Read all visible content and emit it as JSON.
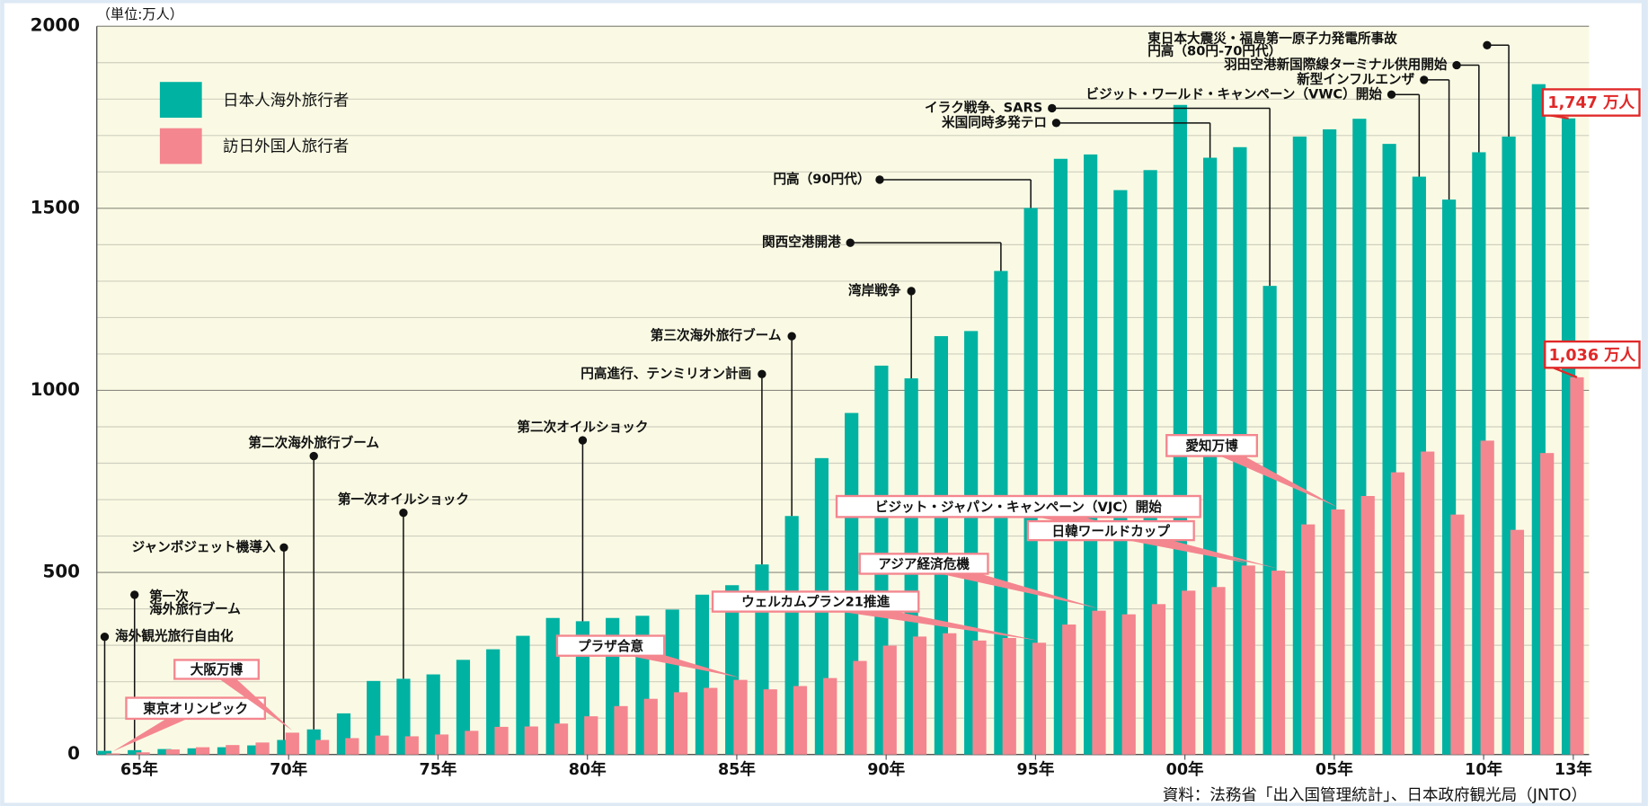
{
  "chart_data": {
    "type": "bar",
    "unit_label": "（単位:万人）",
    "source": "資料：法務省「出入国管理統計」、日本政府観光局（JNTO）",
    "categories": [
      null,
      "65年",
      null,
      null,
      null,
      null,
      "70年",
      null,
      null,
      null,
      null,
      "75年",
      null,
      null,
      null,
      null,
      "80年",
      null,
      null,
      null,
      null,
      "85年",
      null,
      null,
      null,
      null,
      "90年",
      null,
      null,
      null,
      null,
      "95年",
      null,
      null,
      null,
      null,
      "00年",
      null,
      null,
      null,
      null,
      "05年",
      null,
      null,
      null,
      null,
      "10年",
      null,
      null,
      "13年"
    ],
    "series": [
      {
        "name": "日本人海外旅行者",
        "color": "#00b2a2",
        "values": [
          10,
          12,
          15,
          17,
          20,
          25,
          40,
          69,
          113,
          202,
          208,
          220,
          260,
          289,
          326,
          375,
          366,
          375,
          381,
          398,
          439,
          465,
          522,
          655,
          814,
          938,
          1068,
          1033,
          1149,
          1163,
          1328,
          1501,
          1636,
          1648,
          1550,
          1605,
          1784,
          1639,
          1668,
          1287,
          1697,
          1717,
          1746,
          1677,
          1587,
          1524,
          1654,
          1697,
          1841,
          1747
        ],
        "value_labels": [
          null,
          null,
          null,
          null,
          null,
          null,
          null,
          null,
          null,
          null,
          null,
          null,
          null,
          null,
          null,
          null,
          null,
          null,
          null,
          null,
          null,
          null,
          null,
          null,
          null,
          null,
          null,
          null,
          null,
          null,
          null,
          null,
          null,
          null,
          null,
          null,
          null,
          null,
          null,
          null,
          null,
          null,
          null,
          null,
          null,
          null,
          null,
          null,
          null,
          "1,747 万人"
        ]
      },
      {
        "name": "訪日外国人旅行者",
        "color": "#f4868f",
        "values": [
          3,
          6,
          14,
          20,
          26,
          33,
          60,
          40,
          45,
          52,
          50,
          55,
          65,
          76,
          77,
          85,
          105,
          133,
          153,
          171,
          183,
          205,
          179,
          188,
          210,
          257,
          299,
          324,
          333,
          313,
          320,
          307,
          357,
          395,
          385,
          413,
          450,
          460,
          519,
          505,
          632,
          673,
          710,
          775,
          832,
          659,
          862,
          617,
          828,
          1036
        ],
        "value_labels": [
          null,
          null,
          null,
          null,
          null,
          null,
          null,
          null,
          null,
          null,
          null,
          null,
          null,
          null,
          null,
          null,
          null,
          null,
          null,
          null,
          null,
          null,
          null,
          null,
          null,
          null,
          null,
          null,
          null,
          null,
          null,
          null,
          null,
          null,
          null,
          null,
          null,
          null,
          null,
          null,
          null,
          null,
          null,
          null,
          null,
          null,
          null,
          null,
          null,
          "1,036 万人"
        ]
      }
    ],
    "ylim": [
      0,
      2000
    ],
    "yticks": [
      0,
      500,
      1000,
      1500,
      2000
    ],
    "minor_yticks": [
      100,
      200,
      300,
      400,
      600,
      700,
      800,
      900,
      1100,
      1200,
      1300,
      1400,
      1600,
      1700,
      1800,
      1900
    ],
    "grid": true,
    "legend": "upper left",
    "annotations": [
      {
        "lines": [
          "海外観光旅行自由化"
        ],
        "series": 0,
        "index": 0
      },
      {
        "lines": [
          "第一次",
          "海外旅行ブーム"
        ],
        "series": 0,
        "index": 1
      },
      {
        "lines": [
          "ジャンボジェット機導入"
        ],
        "series": 0,
        "index": 6
      },
      {
        "lines": [
          "第二次海外旅行ブーム"
        ],
        "series": 0,
        "index": 7
      },
      {
        "lines": [
          "第一次オイルショック"
        ],
        "series": 0,
        "index": 10
      },
      {
        "lines": [
          "第二次オイルショック"
        ],
        "series": 0,
        "index": 16
      },
      {
        "lines": [
          "円高進行、テンミリオン計画"
        ],
        "series": 0,
        "index": 22
      },
      {
        "lines": [
          "第三次海外旅行ブーム"
        ],
        "series": 0,
        "index": 23
      },
      {
        "lines": [
          "湾岸戦争"
        ],
        "series": 0,
        "index": 27
      },
      {
        "lines": [
          "関西空港開港"
        ],
        "series": 0,
        "index": 30
      },
      {
        "lines": [
          "円高（90円代）"
        ],
        "series": 0,
        "index": 31
      },
      {
        "lines": [
          "米国同時多発テロ"
        ],
        "series": 0,
        "index": 37
      },
      {
        "lines": [
          "イラク戦争、SARS"
        ],
        "series": 0,
        "index": 39
      },
      {
        "lines": [
          "ビジット・ワールド・キャンペーン（VWC）開始"
        ],
        "series": 0,
        "index": 44
      },
      {
        "lines": [
          "新型インフルエンザ"
        ],
        "series": 0,
        "index": 45
      },
      {
        "lines": [
          "羽田空港新国際線ターミナル供用開始"
        ],
        "series": 0,
        "index": 46
      },
      {
        "lines": [
          "東日本大震災・福島第一原子力発電所事故",
          "円高（80円-70円代）"
        ],
        "series": 0,
        "index": 47
      },
      {
        "lines": [
          "東京オリンピック"
        ],
        "series": 1,
        "index": 0
      },
      {
        "lines": [
          "大阪万博"
        ],
        "series": 1,
        "index": 6
      },
      {
        "lines": [
          "プラザ合意"
        ],
        "series": 1,
        "index": 21
      },
      {
        "lines": [
          "ウェルカムプラン21推進"
        ],
        "series": 1,
        "index": 31
      },
      {
        "lines": [
          "アジア経済危機"
        ],
        "series": 1,
        "index": 33
      },
      {
        "lines": [
          "ビジット・ジャパン・キャンペーン（VJC）開始"
        ],
        "series": 1,
        "index": 39
      },
      {
        "lines": [
          "日韓ワールドカップ"
        ],
        "series": 1,
        "index": 38
      },
      {
        "lines": [
          "愛知万博"
        ],
        "series": 1,
        "index": 41
      }
    ]
  }
}
